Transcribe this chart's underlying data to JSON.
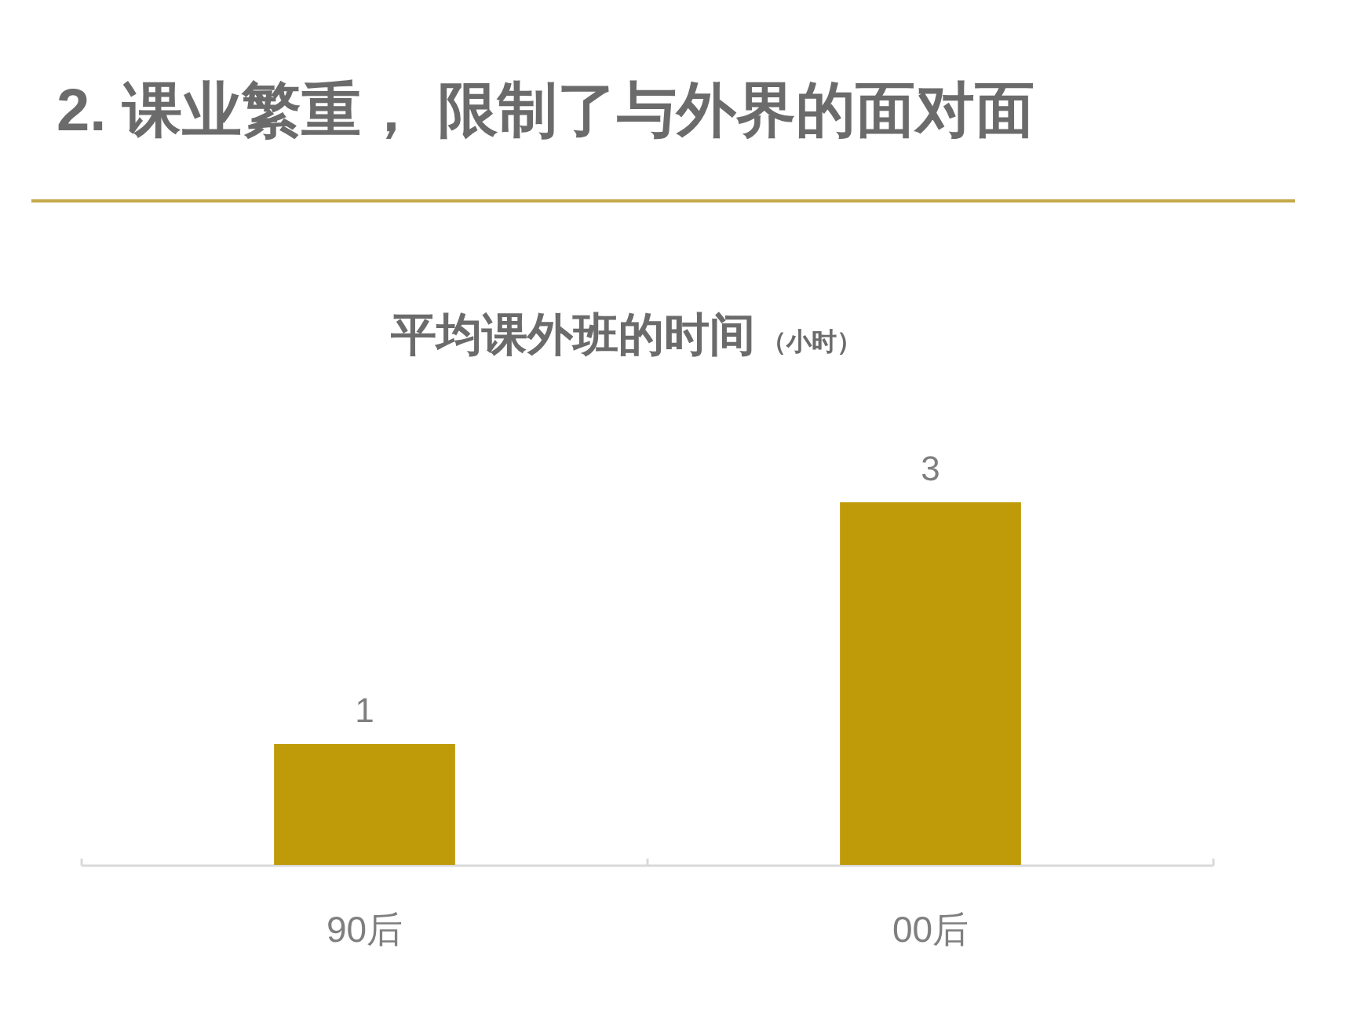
{
  "chart_data": {
    "type": "bar",
    "title": "2. 课业繁重， 限制了与外界的面对面",
    "subtitle": "平均课外班的时间",
    "annotations": [
      "（小时）"
    ],
    "categories": [
      "90后",
      "00后"
    ],
    "values": [
      1,
      3
    ],
    "color": "#bf9b0a",
    "data_labels": true
  }
}
